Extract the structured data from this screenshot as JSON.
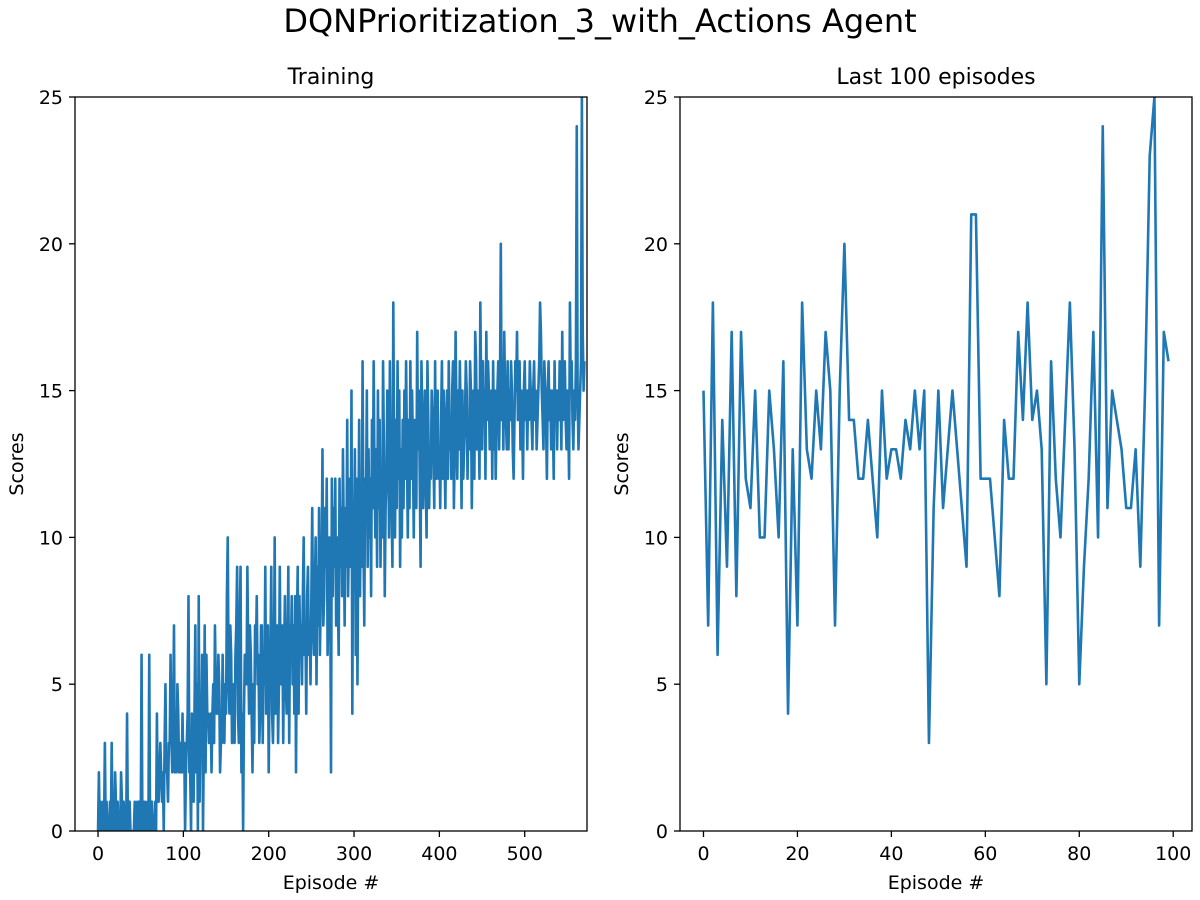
{
  "figure": {
    "suptitle": "DQNPrioritization_3_with_Actions Agent"
  },
  "chart_data": [
    {
      "type": "line",
      "title": "Training",
      "xlabel": "Episode #",
      "ylabel": "Scores",
      "xlim": [
        -27,
        573
      ],
      "ylim": [
        0,
        25
      ],
      "xticks": [
        0,
        100,
        200,
        300,
        400,
        500
      ],
      "yticks": [
        0,
        5,
        10,
        15,
        20,
        25
      ],
      "grid": false,
      "color": "#1f77b4",
      "series": [
        {
          "x_start": 0,
          "values": [
            0,
            2,
            0,
            1,
            0,
            0,
            1,
            0,
            3,
            0,
            1,
            0,
            0,
            0,
            1,
            0,
            3,
            0,
            1,
            0,
            2,
            1,
            0,
            1,
            0,
            0,
            0,
            2,
            1,
            0,
            1,
            0,
            0,
            0,
            4,
            0,
            1,
            1,
            0,
            0,
            0,
            0,
            0,
            1,
            0,
            0,
            1,
            0,
            1,
            0,
            0,
            6,
            0,
            1,
            0,
            1,
            0,
            0,
            1,
            0,
            6,
            0,
            1,
            1,
            0,
            0,
            0,
            1,
            0,
            4,
            1,
            1,
            2,
            3,
            2,
            1,
            2,
            0,
            3,
            5,
            2,
            2,
            1,
            3,
            3,
            6,
            3,
            2,
            4,
            7,
            2,
            3,
            2,
            5,
            4,
            2,
            3,
            2,
            2,
            4,
            2,
            3,
            0,
            2,
            3,
            4,
            8,
            2,
            2,
            0,
            4,
            3,
            1,
            4,
            7,
            2,
            5,
            0,
            8,
            1,
            4,
            3,
            6,
            0,
            3,
            7,
            2,
            6,
            4,
            4,
            3,
            3,
            4,
            2,
            4,
            5,
            3,
            7,
            5,
            4,
            4,
            6,
            5,
            2,
            3,
            3,
            6,
            4,
            3,
            5,
            4,
            8,
            10,
            5,
            4,
            7,
            6,
            3,
            5,
            4,
            3,
            6,
            7,
            9,
            4,
            3,
            7,
            9,
            2,
            4,
            0,
            4,
            6,
            6,
            5,
            9,
            6,
            4,
            7,
            6,
            4,
            2,
            5,
            3,
            7,
            6,
            8,
            5,
            6,
            3,
            4,
            7,
            7,
            3,
            6,
            5,
            9,
            4,
            5,
            7,
            2,
            5,
            6,
            9,
            4,
            3,
            5,
            10,
            4,
            6,
            7,
            3,
            5,
            9,
            5,
            6,
            7,
            3,
            6,
            8,
            5,
            4,
            6,
            9,
            3,
            7,
            6,
            8,
            5,
            7,
            4,
            8,
            2,
            7,
            9,
            4,
            8,
            6,
            7,
            5,
            8,
            10,
            6,
            7,
            4,
            8,
            9,
            6,
            7,
            5,
            8,
            11,
            7,
            6,
            8,
            10,
            5,
            9,
            7,
            11,
            6,
            8,
            9,
            13,
            7,
            8,
            11,
            9,
            12,
            6,
            8,
            10,
            9,
            2,
            12,
            8,
            11,
            9,
            12,
            7,
            10,
            8,
            6,
            12,
            9,
            11,
            8,
            13,
            10,
            7,
            11,
            9,
            14,
            8,
            10,
            12,
            9,
            15,
            4,
            11,
            10,
            13,
            6,
            12,
            5,
            10,
            14,
            8,
            11,
            9,
            16,
            10,
            7,
            12,
            11,
            15,
            9,
            13,
            10,
            12,
            8,
            14,
            11,
            16,
            12,
            10,
            13,
            9,
            15,
            11,
            14,
            9,
            12,
            10,
            16,
            13,
            8,
            11,
            12,
            15,
            14,
            10,
            16,
            12,
            11,
            9,
            18,
            13,
            10,
            14,
            11,
            16,
            12,
            15,
            9,
            13,
            10,
            14,
            11,
            15,
            12,
            16,
            13,
            10,
            14,
            11,
            16,
            12,
            15,
            13,
            10,
            14,
            12,
            11,
            17,
            13,
            15,
            12,
            9,
            16,
            14,
            11,
            13,
            15,
            12,
            10,
            16,
            14,
            11,
            13,
            12,
            15,
            14,
            13,
            11,
            16,
            12,
            14,
            15,
            12,
            13,
            11,
            14,
            16,
            12,
            15,
            13,
            11,
            14,
            15,
            12,
            16,
            13,
            14,
            12,
            15,
            16,
            11,
            13,
            17,
            14,
            12,
            15,
            13,
            16,
            14,
            11,
            15,
            12,
            13,
            14,
            16,
            15,
            12,
            14,
            13,
            16,
            15,
            11,
            14,
            15,
            12,
            17,
            16,
            13,
            15,
            14,
            12,
            18,
            15,
            13,
            16,
            14,
            15,
            12,
            17,
            14,
            16,
            15,
            13,
            14,
            15,
            12,
            16,
            13,
            15,
            12,
            14,
            15,
            16,
            13,
            15,
            20,
            14,
            16,
            13,
            17,
            15,
            14,
            13,
            16,
            13,
            15,
            14,
            16,
            15,
            13,
            12,
            14,
            16,
            15,
            17,
            14,
            15,
            16,
            13,
            15,
            14,
            12,
            15,
            16,
            14,
            15,
            13,
            15,
            14,
            16,
            15,
            14,
            13,
            15,
            16,
            14,
            15,
            13,
            14,
            15,
            16,
            18,
            17,
            15,
            14,
            13,
            16,
            15,
            14,
            12,
            15,
            16,
            14,
            15,
            13,
            15,
            14,
            12,
            16,
            14,
            15,
            13,
            15,
            14,
            16,
            15,
            13,
            17,
            14,
            15,
            16,
            14,
            13,
            15,
            14,
            12,
            18,
            15,
            16,
            14,
            13,
            15,
            14,
            16,
            24,
            15,
            13,
            14,
            15,
            16,
            25,
            17,
            15,
            16
          ]
        }
      ]
    },
    {
      "type": "line",
      "title": "Last 100 episodes",
      "xlabel": "Episode #",
      "ylabel": "Scores",
      "xlim": [
        -5,
        104
      ],
      "ylim": [
        0,
        25
      ],
      "xticks": [
        0,
        20,
        40,
        60,
        80,
        100
      ],
      "yticks": [
        0,
        5,
        10,
        15,
        20,
        25
      ],
      "grid": false,
      "color": "#1f77b4",
      "series": [
        {
          "x_start": 0,
          "values": [
            15,
            7,
            18,
            6,
            14,
            9,
            17,
            8,
            17,
            12,
            11,
            15,
            10,
            10,
            15,
            13,
            10,
            16,
            4,
            13,
            7,
            18,
            13,
            12,
            15,
            13,
            17,
            15,
            7,
            15,
            20,
            14,
            14,
            12,
            12,
            14,
            12,
            10,
            15,
            12,
            13,
            13,
            12,
            14,
            13,
            15,
            13,
            15,
            3,
            11,
            15,
            11,
            13,
            15,
            13,
            11,
            9,
            21,
            21,
            12,
            12,
            12,
            10,
            8,
            14,
            12,
            12,
            17,
            14,
            18,
            14,
            15,
            13,
            5,
            16,
            12,
            10,
            14,
            18,
            13,
            5,
            9,
            12,
            17,
            10,
            24,
            11,
            15,
            14,
            13,
            11,
            11,
            13,
            9,
            15,
            23,
            25,
            7,
            17,
            16
          ]
        }
      ]
    }
  ]
}
